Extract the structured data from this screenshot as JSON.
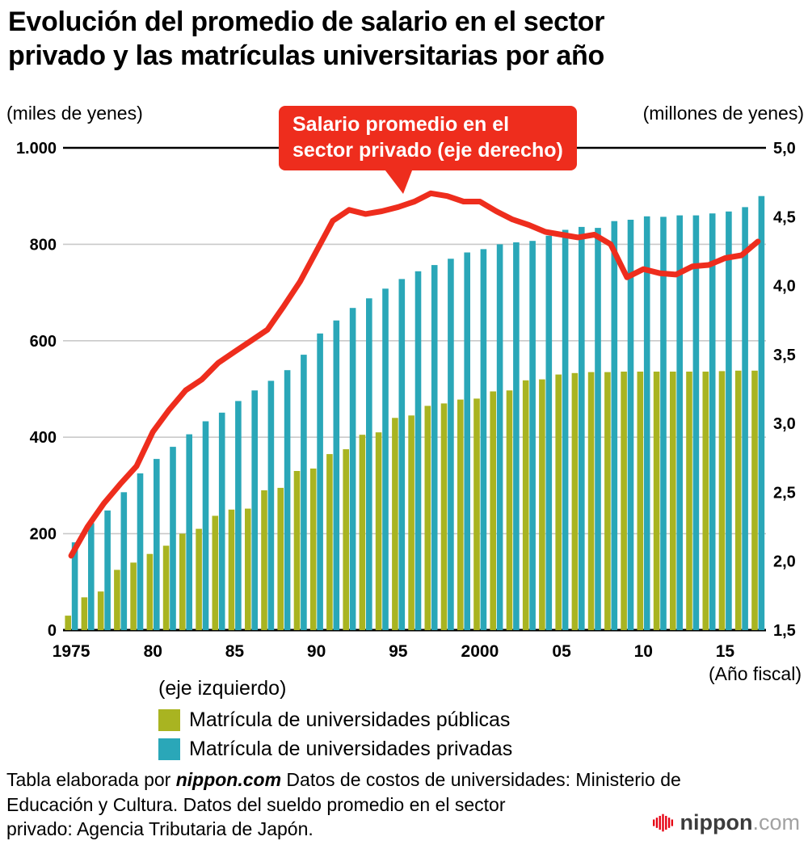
{
  "title": {
    "text": "Evolución del promedio de salario en el sector privado y las matrículas universitarias por año",
    "line1": "Evolución del promedio de salario en el sector",
    "line2": "privado y las matrículas universitarias por año"
  },
  "axes": {
    "left_unit": "(miles de yenes)",
    "right_unit": "(millones de yenes)",
    "x_unit": "(Año fiscal)",
    "left_ticks": [
      "1.000",
      "800",
      "600",
      "400",
      "200",
      "0"
    ],
    "right_ticks": [
      "5,0",
      "4,5",
      "4,0",
      "3,5",
      "3,0",
      "2,5",
      "2,0",
      "1,5"
    ]
  },
  "callout": {
    "line1": "Salario promedio en el",
    "line2": "sector privado (eje derecho)"
  },
  "legend": {
    "axis_note": "(eje izquierdo)",
    "items": [
      {
        "label": "Matrícula de universidades públicas",
        "color": "#a9b421"
      },
      {
        "label": "Matrícula de universidades privadas",
        "color": "#2aa7b8"
      }
    ]
  },
  "footer": {
    "prefix": "Tabla elaborada por ",
    "brand": "nippon.com",
    "line1_rest": " Datos de costos de universidades: Ministerio de",
    "line2": "Educación y Cultura. Datos del sueldo promedio en el sector",
    "line3": "privado: Agencia Tributaria de Japón."
  },
  "logo": {
    "brand": "nippon",
    "tld": ".com"
  },
  "colors": {
    "public_bar": "#a9b421",
    "private_bar": "#2aa7b8",
    "salary_line": "#ee2d1d",
    "grid": "#c9c9c9",
    "axis": "#000000",
    "logo_red": "#e60012"
  },
  "chart_data": {
    "type": "bar+line",
    "title": "Evolución del promedio de salario en el sector privado y las matrículas universitarias por año",
    "x": [
      1975,
      1976,
      1977,
      1978,
      1979,
      1980,
      1981,
      1982,
      1983,
      1984,
      1985,
      1986,
      1987,
      1988,
      1989,
      1990,
      1991,
      1992,
      1993,
      1994,
      1995,
      1996,
      1997,
      1998,
      1999,
      2000,
      2001,
      2002,
      2003,
      2004,
      2005,
      2006,
      2007,
      2008,
      2009,
      2010,
      2011,
      2012,
      2013,
      2014,
      2015,
      2016,
      2017
    ],
    "x_tick_labels": {
      "1975": "1975",
      "1980": "80",
      "1985": "85",
      "1990": "90",
      "1995": "95",
      "2000": "2000",
      "2005": "05",
      "2010": "10",
      "2015": "15"
    },
    "left_axis": {
      "label": "miles de yenes",
      "min": 0,
      "max": 1000,
      "tick_step": 200
    },
    "right_axis": {
      "label": "millones de yenes",
      "min": 1.5,
      "max": 5.0,
      "tick_step": 0.5
    },
    "legend_position": "bottom-left",
    "grid": "horizontal",
    "series": [
      {
        "name": "Matrícula de universidades públicas",
        "type": "bar",
        "axis": "left",
        "values": [
          30,
          68,
          80,
          125,
          140,
          158,
          175,
          200,
          210,
          237,
          250,
          252,
          290,
          295,
          330,
          335,
          365,
          375,
          405,
          410,
          440,
          445,
          465,
          470,
          478,
          480,
          495,
          497,
          518,
          520,
          530,
          533,
          535,
          535,
          536,
          536,
          536,
          536,
          536,
          536,
          537,
          538,
          538
        ]
      },
      {
        "name": "Matrícula de universidades privadas",
        "type": "bar",
        "axis": "left",
        "values": [
          182,
          222,
          248,
          286,
          325,
          355,
          380,
          406,
          433,
          451,
          475,
          497,
          517,
          539,
          571,
          615,
          642,
          668,
          688,
          708,
          728,
          744,
          757,
          770,
          783,
          790,
          800,
          804,
          807,
          818,
          830,
          836,
          834,
          848,
          851,
          858,
          857,
          860,
          860,
          864,
          868,
          877,
          900
        ]
      },
      {
        "name": "Salario promedio en el sector privado",
        "type": "line",
        "axis": "right",
        "values": [
          2.04,
          2.25,
          2.42,
          2.56,
          2.69,
          2.94,
          3.1,
          3.24,
          3.32,
          3.44,
          3.52,
          3.6,
          3.68,
          3.85,
          4.03,
          4.25,
          4.47,
          4.55,
          4.52,
          4.54,
          4.57,
          4.61,
          4.67,
          4.65,
          4.61,
          4.61,
          4.54,
          4.48,
          4.44,
          4.39,
          4.37,
          4.35,
          4.37,
          4.3,
          4.06,
          4.12,
          4.09,
          4.08,
          4.14,
          4.15,
          4.2,
          4.22,
          4.32
        ]
      }
    ]
  }
}
